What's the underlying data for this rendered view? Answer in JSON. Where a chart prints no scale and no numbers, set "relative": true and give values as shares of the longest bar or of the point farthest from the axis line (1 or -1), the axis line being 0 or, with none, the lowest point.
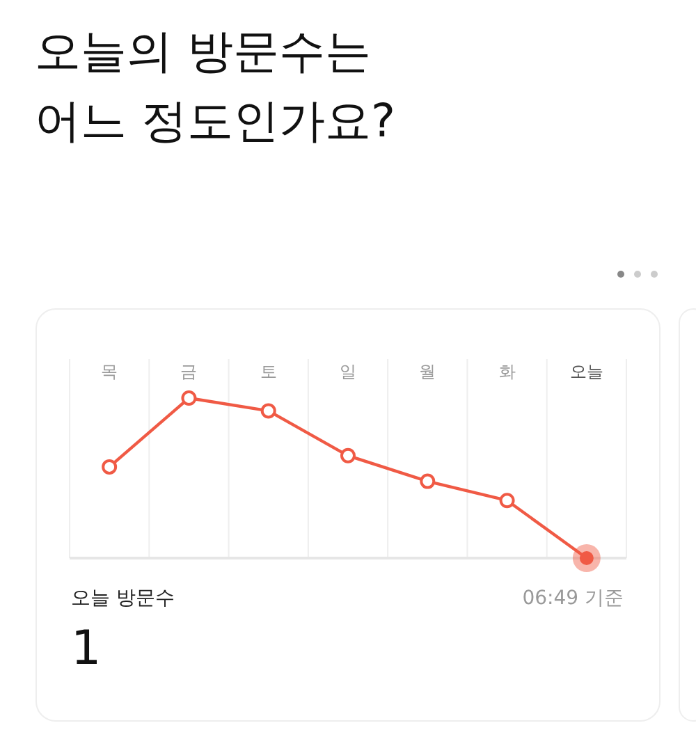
{
  "chart_data": {
    "type": "line",
    "title": "오늘의 방문수는\n어느 정도인가요?",
    "categories": [
      "목",
      "금",
      "토",
      "일",
      "월",
      "화",
      "오늘"
    ],
    "relative": true,
    "series": [
      {
        "color": "#f05a45",
        "values": [
          0.57,
          1,
          0.92,
          0.64,
          0.48,
          0.36,
          0
        ]
      }
    ],
    "marker": "circle",
    "grid": "x",
    "annotations": [
      "오늘 방문수",
      "1",
      "06:49 기준"
    ]
  }
}
